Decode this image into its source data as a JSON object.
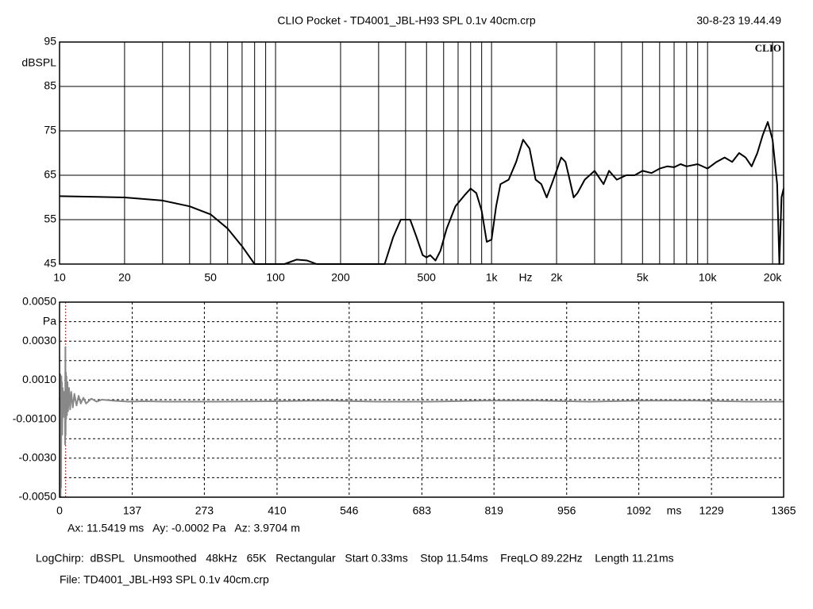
{
  "header": {
    "title": "CLIO Pocket - TD4001_JBL-H93 SPL 0.1v 40cm.crp",
    "timestamp": "30-8-23 19.44.49",
    "logo": "CLIO"
  },
  "chart_data": [
    {
      "type": "line",
      "log_x": true,
      "grid": true,
      "color": "#000000",
      "xlabel": "Hz",
      "ylabel": "dBSPL",
      "xlim": [
        10,
        22500
      ],
      "xticks": [
        10,
        20,
        50,
        100,
        200,
        500,
        {
          "value": 1000,
          "label": "1k"
        },
        {
          "value": 2000,
          "label": "2k"
        },
        {
          "value": 5000,
          "label": "5k"
        },
        {
          "value": 10000,
          "label": "10k"
        },
        {
          "value": 20000,
          "label": "20k"
        }
      ],
      "xminorticks": [
        30,
        40,
        60,
        70,
        80,
        90,
        300,
        400,
        600,
        700,
        800,
        900,
        3000,
        4000,
        6000,
        7000,
        8000,
        9000
      ],
      "ylim": [
        45,
        95
      ],
      "yticks": [
        95,
        85,
        75,
        65,
        55,
        45
      ],
      "x": [
        10,
        20,
        30,
        40,
        50,
        60,
        70,
        80,
        100,
        110,
        125,
        140,
        155,
        170,
        200,
        250,
        320,
        350,
        380,
        420,
        450,
        480,
        500,
        520,
        550,
        580,
        620,
        680,
        750,
        800,
        850,
        900,
        950,
        1000,
        1050,
        1100,
        1200,
        1300,
        1400,
        1500,
        1600,
        1700,
        1800,
        1900,
        2000,
        2100,
        2200,
        2300,
        2400,
        2500,
        2700,
        3000,
        3300,
        3500,
        3800,
        4200,
        4600,
        5000,
        5500,
        6000,
        6500,
        7000,
        7500,
        8000,
        9000,
        10000,
        11000,
        12000,
        13000,
        14000,
        15000,
        16000,
        17000,
        18000,
        19000,
        20000,
        21000,
        21500,
        22000,
        22500
      ],
      "values": [
        60.3,
        60,
        59.3,
        58,
        56.2,
        53,
        49,
        45,
        45,
        45,
        46,
        45.8,
        45,
        45,
        45,
        45,
        45,
        51,
        55,
        55,
        51,
        47,
        46.5,
        47,
        45.8,
        48,
        53,
        58,
        60.5,
        62,
        61,
        57,
        50,
        50.5,
        58,
        63,
        64,
        68,
        73,
        71,
        64,
        63,
        60,
        63,
        66,
        69,
        68,
        64,
        60,
        61,
        64,
        66,
        63,
        66,
        64,
        65,
        65,
        66,
        65.5,
        66.5,
        67,
        66.8,
        67.5,
        67,
        67.5,
        66.5,
        68,
        69,
        68,
        70,
        69,
        67,
        70,
        74,
        77,
        73,
        63,
        45,
        60,
        62
      ]
    },
    {
      "type": "line",
      "log_x": false,
      "grid": true,
      "color": "#888888",
      "xlabel": "ms",
      "ylabel": "Pa",
      "xlim": [
        0,
        1365
      ],
      "xticks": [
        0,
        137,
        273,
        410,
        546,
        683,
        819,
        956,
        1092,
        1229,
        1365
      ],
      "ylim": [
        -0.005,
        0.005
      ],
      "yticks": [
        {
          "value": 0.005,
          "label": "0.0050"
        },
        {
          "value": 0.003,
          "label": "0.0030"
        },
        {
          "value": 0.001,
          "label": "0.0010"
        },
        {
          "value": -0.001,
          "label": "-0.00100"
        },
        {
          "value": -0.003,
          "label": "-0.0030"
        },
        {
          "value": -0.005,
          "label": "-0.0050"
        }
      ],
      "yminorticks": [
        0.004,
        0.002,
        0,
        -0.002,
        -0.004
      ],
      "cursor": {
        "x": 11.5419,
        "color": "#ff0000",
        "label": "Ax: 11.5419 ms   Ay: -0.0002 Pa   Az: 3.9704 m"
      },
      "x": [
        0,
        1,
        1.5,
        2,
        2.5,
        3,
        3.5,
        4,
        4.5,
        5,
        6,
        7,
        8,
        9,
        10,
        10.5,
        11,
        11.5,
        12,
        12.5,
        13,
        14,
        15,
        16,
        18,
        20,
        22,
        25,
        28,
        32,
        36,
        40,
        45,
        50,
        60,
        70,
        80,
        100,
        130,
        160,
        200,
        300,
        400,
        500,
        600,
        700,
        800,
        900,
        1000,
        1100,
        1200,
        1300,
        1365
      ],
      "values": [
        0,
        0.0002,
        0.0013,
        -0.005,
        0.0008,
        -0.0045,
        0.0012,
        -0.0012,
        0.0009,
        -0.0018,
        0.0006,
        -0.0009,
        0.0004,
        -0.0006,
        0.0003,
        -0.0023,
        0.0027,
        -0.0018,
        0.0014,
        -0.001,
        0.0012,
        -0.0008,
        0.0009,
        -0.0006,
        0.0006,
        -0.0005,
        0.0004,
        -0.0004,
        0.0003,
        -0.0003,
        0.0002,
        -0.0002,
        0.0001,
        -0.0002,
        5e-05,
        -0.0001,
        0,
        -5e-05,
        -0.0001,
        -8e-05,
        -0.0001,
        -0.0001,
        -8e-05,
        -5e-05,
        -0.0001,
        -0.0001,
        -5e-05,
        -5e-05,
        -0.0001,
        -5e-05,
        -5e-05,
        -0.0001,
        -0.0001
      ]
    }
  ],
  "footer": {
    "settings": "LogChirp:  dBSPL   Unsmoothed   48kHz   65K   Rectangular   Start 0.33ms    Stop 11.54ms    FreqLO 89.22Hz    Length 11.21ms",
    "file": "File: TD4001_JBL-H93 SPL 0.1v 40cm.crp"
  }
}
